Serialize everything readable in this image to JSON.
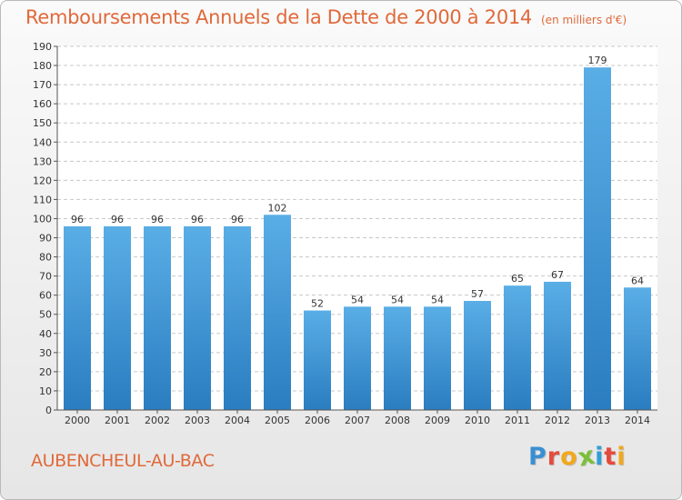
{
  "page": {
    "title": "Remboursements Annuels de la Dette de 2000 à 2014",
    "unit_note": "(en milliers d'€)",
    "commune": "AUBENCHEUL-AU-BAC",
    "logo": {
      "text": "Proxiti",
      "letters": [
        "P",
        "r",
        "o",
        "x",
        "i",
        "t",
        "i"
      ],
      "colors": [
        "#3a8fd3",
        "#e64a3b",
        "#f2a81d",
        "#7bbf3a",
        "#2f9fd8",
        "#e64a3b",
        "#f2a81d"
      ]
    }
  },
  "colors": {
    "bar_top": "#5aaee6",
    "bar_bottom": "#2a7dc0",
    "title": "#e0693a",
    "grid": "#c8c8c8",
    "axis": "#555555"
  },
  "chart_data": {
    "type": "bar",
    "title": "Remboursements Annuels de la Dette de 2000 à 2014",
    "ylabel": "",
    "xlabel": "",
    "categories": [
      "2000",
      "2001",
      "2002",
      "2003",
      "2004",
      "2005",
      "2006",
      "2007",
      "2008",
      "2009",
      "2010",
      "2011",
      "2012",
      "2013",
      "2014"
    ],
    "values": [
      96,
      96,
      96,
      96,
      96,
      102,
      52,
      54,
      54,
      54,
      57,
      65,
      67,
      179,
      64
    ],
    "ylim": [
      0,
      190
    ],
    "yticks": [
      0,
      10,
      20,
      30,
      40,
      50,
      60,
      70,
      80,
      90,
      100,
      110,
      120,
      130,
      140,
      150,
      160,
      170,
      180,
      190
    ],
    "grid": true
  }
}
